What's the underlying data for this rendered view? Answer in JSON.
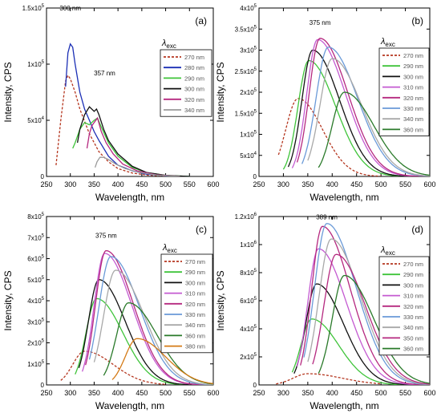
{
  "chart_data": [
    {
      "panel": "a",
      "type": "line",
      "panel_label": "(a)",
      "xlabel": "Wavelength, nm",
      "ylabel": "Intensity, CPS",
      "xlim": [
        250,
        600
      ],
      "ylim": [
        0,
        150000
      ],
      "xticks": [
        "250",
        "300",
        "350",
        "400",
        "450",
        "500",
        "550",
        "600"
      ],
      "yticks": [
        {
          "v": 0,
          "mant": "0",
          "exp": ""
        },
        {
          "v": 50000,
          "mant": "5x10",
          "exp": "4"
        },
        {
          "v": 100000,
          "mant": "1x10",
          "exp": "5"
        },
        {
          "v": 150000,
          "mant": "1.5x10",
          "exp": "5"
        }
      ],
      "legend_title": "λexc",
      "legend_position": "right",
      "annotations": [
        {
          "text": "300 nm",
          "x": 300,
          "y": 148000
        },
        {
          "text": "357 nm",
          "x": 372,
          "y": 90000
        }
      ],
      "series": [
        {
          "name": "270 nm",
          "color": "#b5361f",
          "dash": true,
          "x": [
            270,
            280,
            290,
            295,
            300,
            310,
            320,
            340,
            360,
            380,
            400,
            430,
            460,
            500
          ],
          "y": [
            10000,
            50000,
            85000,
            90000,
            87000,
            75000,
            60000,
            38000,
            22000,
            13000,
            7000,
            3000,
            1200,
            300
          ]
        },
        {
          "name": "280 nm",
          "color": "#1b2fb5",
          "dash": false,
          "x": [
            290,
            295,
            300,
            305,
            310,
            320,
            330,
            340,
            350,
            360,
            380,
            400,
            430,
            460,
            500,
            550
          ],
          "y": [
            80000,
            110000,
            118000,
            115000,
            100000,
            75000,
            60000,
            50000,
            40000,
            32000,
            18000,
            10000,
            5000,
            2000,
            600,
            0
          ]
        },
        {
          "name": "290 nm",
          "color": "#3fc43a",
          "dash": false,
          "x": [
            305,
            310,
            320,
            330,
            340,
            350,
            357,
            365,
            380,
            400,
            430,
            460,
            500,
            550
          ],
          "y": [
            25000,
            30000,
            42000,
            48000,
            46000,
            50000,
            52000,
            44000,
            30000,
            18000,
            8000,
            3500,
            1000,
            0
          ]
        },
        {
          "name": "300 nm",
          "color": "#111111",
          "dash": false,
          "x": [
            315,
            320,
            330,
            340,
            350,
            355,
            360,
            370,
            380,
            400,
            430,
            460,
            500,
            550
          ],
          "y": [
            30000,
            42000,
            55000,
            62000,
            58000,
            60000,
            55000,
            42000,
            32000,
            20000,
            9000,
            3500,
            1000,
            0
          ]
        },
        {
          "name": "320 nm",
          "color": "#b5287f",
          "dash": false,
          "x": [
            335,
            340,
            345,
            350,
            357,
            365,
            375,
            390,
            410,
            440,
            480,
            530
          ],
          "y": [
            25000,
            38000,
            45000,
            48000,
            52000,
            40000,
            30000,
            20000,
            11000,
            5000,
            1500,
            0
          ]
        },
        {
          "name": "340 nm",
          "color": "#9a9a9a",
          "dash": false,
          "x": [
            352,
            356,
            362,
            370,
            380,
            395,
            415,
            440,
            480,
            530
          ],
          "y": [
            8000,
            13000,
            17000,
            17000,
            15000,
            11000,
            7000,
            4000,
            1200,
            0
          ]
        }
      ]
    },
    {
      "panel": "b",
      "type": "line",
      "panel_label": "(b)",
      "xlabel": "Wavelength, nm",
      "ylabel": "Intensity, CPS",
      "xlim": [
        250,
        600
      ],
      "ylim": [
        0,
        400000
      ],
      "xticks": [
        "250",
        "300",
        "350",
        "400",
        "450",
        "500",
        "550",
        "600"
      ],
      "yticks": [
        {
          "v": 0,
          "mant": "0",
          "exp": ""
        },
        {
          "v": 50000,
          "mant": "5x10",
          "exp": "4"
        },
        {
          "v": 100000,
          "mant": "1x10",
          "exp": "5"
        },
        {
          "v": 150000,
          "mant": "1.5x10",
          "exp": "5"
        },
        {
          "v": 200000,
          "mant": "2x10",
          "exp": "5"
        },
        {
          "v": 250000,
          "mant": "2.5x10",
          "exp": "5"
        },
        {
          "v": 300000,
          "mant": "3x10",
          "exp": "5"
        },
        {
          "v": 350000,
          "mant": "3.5x10",
          "exp": "5"
        },
        {
          "v": 400000,
          "mant": "4x10",
          "exp": "5"
        }
      ],
      "legend_title": "λexc",
      "legend_position": "right",
      "annotations": [
        {
          "text": "375 nm",
          "x": 375,
          "y": 360000
        }
      ],
      "series": [
        {
          "name": "270 nm",
          "color": "#b5361f",
          "dash": true,
          "peak": 330,
          "amp": 185000,
          "sl": 25,
          "sr": 50,
          "start": 290,
          "end": 500
        },
        {
          "name": "290 nm",
          "color": "#3fc43a",
          "dash": false,
          "peak": 352,
          "amp": 275000,
          "sl": 22,
          "sr": 55,
          "start": 300,
          "end": 550
        },
        {
          "name": "300 nm",
          "color": "#111111",
          "dash": false,
          "peak": 360,
          "amp": 300000,
          "sl": 22,
          "sr": 55,
          "start": 310,
          "end": 560
        },
        {
          "name": "310 nm",
          "color": "#c45ad1",
          "dash": false,
          "peak": 370,
          "amp": 325000,
          "sl": 22,
          "sr": 57,
          "start": 318,
          "end": 580
        },
        {
          "name": "320 nm",
          "color": "#b5287f",
          "dash": false,
          "peak": 375,
          "amp": 328000,
          "sl": 22,
          "sr": 57,
          "start": 328,
          "end": 590
        },
        {
          "name": "330 nm",
          "color": "#6a9ad8",
          "dash": false,
          "peak": 392,
          "amp": 307000,
          "sl": 25,
          "sr": 60,
          "start": 338,
          "end": 600
        },
        {
          "name": "340 nm",
          "color": "#a8a8a8",
          "dash": false,
          "peak": 400,
          "amp": 280000,
          "sl": 25,
          "sr": 60,
          "start": 350,
          "end": 600
        },
        {
          "name": "360 nm",
          "color": "#2a7a2a",
          "dash": false,
          "peak": 425,
          "amp": 200000,
          "sl": 25,
          "sr": 60,
          "start": 372,
          "end": 600
        }
      ]
    },
    {
      "panel": "c",
      "type": "line",
      "panel_label": "(c)",
      "xlabel": "Wavelength, nm",
      "ylabel": "Intensity, CPS",
      "xlim": [
        250,
        600
      ],
      "ylim": [
        0,
        800000
      ],
      "xticks": [
        "250",
        "300",
        "350",
        "400",
        "450",
        "500",
        "550",
        "600"
      ],
      "yticks": [
        {
          "v": 0,
          "mant": "0",
          "exp": ""
        },
        {
          "v": 100000,
          "mant": "1x10",
          "exp": "5"
        },
        {
          "v": 200000,
          "mant": "2x10",
          "exp": "5"
        },
        {
          "v": 300000,
          "mant": "3x10",
          "exp": "5"
        },
        {
          "v": 400000,
          "mant": "4x10",
          "exp": "5"
        },
        {
          "v": 500000,
          "mant": "5x10",
          "exp": "5"
        },
        {
          "v": 600000,
          "mant": "6x10",
          "exp": "5"
        },
        {
          "v": 700000,
          "mant": "7x10",
          "exp": "5"
        },
        {
          "v": 800000,
          "mant": "8x10",
          "exp": "5"
        }
      ],
      "legend_title": "λexc",
      "legend_position": "right",
      "annotations": [
        {
          "text": "375 nm",
          "x": 375,
          "y": 700000
        }
      ],
      "series": [
        {
          "name": "270 nm",
          "color": "#b5361f",
          "dash": true,
          "peak": 330,
          "amp": 160000,
          "sl": 25,
          "sr": 60,
          "start": 280,
          "end": 500
        },
        {
          "name": "290 nm",
          "color": "#3fc43a",
          "dash": false,
          "peak": 355,
          "amp": 410000,
          "sl": 22,
          "sr": 55,
          "start": 310,
          "end": 550
        },
        {
          "name": "300 nm",
          "color": "#111111",
          "dash": false,
          "peak": 360,
          "amp": 500000,
          "sl": 22,
          "sr": 55,
          "start": 318,
          "end": 560
        },
        {
          "name": "310 nm",
          "color": "#c45ad1",
          "dash": false,
          "peak": 372,
          "amp": 625000,
          "sl": 22,
          "sr": 57,
          "start": 325,
          "end": 580
        },
        {
          "name": "320 nm",
          "color": "#b5287f",
          "dash": false,
          "peak": 375,
          "amp": 638000,
          "sl": 22,
          "sr": 57,
          "start": 332,
          "end": 590
        },
        {
          "name": "330 nm",
          "color": "#6a9ad8",
          "dash": false,
          "peak": 385,
          "amp": 610000,
          "sl": 25,
          "sr": 60,
          "start": 340,
          "end": 600
        },
        {
          "name": "340 nm",
          "color": "#a8a8a8",
          "dash": false,
          "peak": 395,
          "amp": 545000,
          "sl": 25,
          "sr": 60,
          "start": 350,
          "end": 600
        },
        {
          "name": "360 nm",
          "color": "#2a7a2a",
          "dash": false,
          "peak": 422,
          "amp": 390000,
          "sl": 25,
          "sr": 60,
          "start": 370,
          "end": 600
        },
        {
          "name": "380 nm",
          "color": "#d47a16",
          "dash": false,
          "peak": 440,
          "amp": 220000,
          "sl": 25,
          "sr": 60,
          "start": 388,
          "end": 600
        }
      ]
    },
    {
      "panel": "d",
      "type": "line",
      "panel_label": "(d)",
      "xlabel": "Wavelength, nm",
      "ylabel": "Intensity, CPS",
      "xlim": [
        250,
        600
      ],
      "ylim": [
        0,
        1200000
      ],
      "xticks": [
        "250",
        "300",
        "350",
        "400",
        "450",
        "500",
        "550",
        "600"
      ],
      "yticks": [
        {
          "v": 0,
          "mant": "0",
          "exp": ""
        },
        {
          "v": 200000,
          "mant": "2x10",
          "exp": "5"
        },
        {
          "v": 400000,
          "mant": "4x10",
          "exp": "5"
        },
        {
          "v": 600000,
          "mant": "6x10",
          "exp": "5"
        },
        {
          "v": 800000,
          "mant": "8x10",
          "exp": "5"
        },
        {
          "v": 1000000,
          "mant": "1x10",
          "exp": "6"
        },
        {
          "v": 1200000,
          "mant": "1.2x10",
          "exp": "6"
        }
      ],
      "legend_title": "λexc",
      "legend_position": "right",
      "annotations": [
        {
          "text": "389 nm",
          "x": 389,
          "y": 1180000
        }
      ],
      "series": [
        {
          "name": "270 nm",
          "color": "#b5361f",
          "dash": true,
          "peak": 350,
          "amp": 80000,
          "sl": 30,
          "sr": 70,
          "start": 285,
          "end": 500
        },
        {
          "name": "290 nm",
          "color": "#3fc43a",
          "dash": false,
          "peak": 358,
          "amp": 470000,
          "sl": 22,
          "sr": 55,
          "start": 318,
          "end": 550
        },
        {
          "name": "300 nm",
          "color": "#111111",
          "dash": false,
          "peak": 368,
          "amp": 720000,
          "sl": 22,
          "sr": 55,
          "start": 322,
          "end": 560
        },
        {
          "name": "310 nm",
          "color": "#c45ad1",
          "dash": false,
          "peak": 372,
          "amp": 970000,
          "sl": 22,
          "sr": 57,
          "start": 328,
          "end": 580
        },
        {
          "name": "320 nm",
          "color": "#b5287f",
          "dash": false,
          "peak": 380,
          "amp": 1130000,
          "sl": 22,
          "sr": 57,
          "start": 335,
          "end": 590
        },
        {
          "name": "330 nm",
          "color": "#6a9ad8",
          "dash": false,
          "peak": 389,
          "amp": 1150000,
          "sl": 25,
          "sr": 60,
          "start": 342,
          "end": 600
        },
        {
          "name": "340 nm",
          "color": "#a8a8a8",
          "dash": false,
          "peak": 398,
          "amp": 1040000,
          "sl": 25,
          "sr": 60,
          "start": 350,
          "end": 600
        },
        {
          "name": "350 nm",
          "color": "#b5287f",
          "dash": false,
          "peak": 408,
          "amp": 930000,
          "sl": 25,
          "sr": 60,
          "start": 360,
          "end": 600
        },
        {
          "name": "360 nm",
          "color": "#2a7a2a",
          "dash": false,
          "peak": 425,
          "amp": 780000,
          "sl": 25,
          "sr": 60,
          "start": 372,
          "end": 600
        }
      ]
    }
  ]
}
